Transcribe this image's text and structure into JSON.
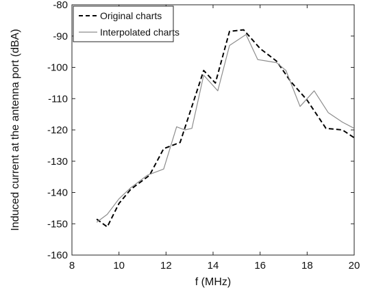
{
  "chart_data": {
    "type": "line",
    "title": "",
    "xlabel": "f (MHz)",
    "ylabel": "Induced current at the antenna port (dBA)",
    "xlim": [
      8,
      20
    ],
    "ylim": [
      -160,
      -80
    ],
    "xticks": [
      8,
      10,
      12,
      14,
      16,
      18,
      20
    ],
    "yticks": [
      -160,
      -150,
      -140,
      -130,
      -120,
      -110,
      -100,
      -90,
      -80
    ],
    "grid": false,
    "legend": "top-left",
    "series": [
      {
        "name": "Original charts",
        "color": "#000000",
        "style": "dashed",
        "x": [
          9.05,
          9.5,
          10.0,
          10.5,
          11.3,
          11.9,
          12.6,
          13.1,
          13.6,
          14.1,
          14.7,
          15.3,
          16.0,
          16.7,
          17.3,
          18.0,
          18.8,
          19.5,
          20.0
        ],
        "y": [
          -148.5,
          -151,
          -143.5,
          -139,
          -134.5,
          -126,
          -124,
          -112.5,
          -101,
          -105,
          -88.5,
          -88,
          -94,
          -98,
          -104.5,
          -110.5,
          -119.5,
          -120,
          -122.5
        ]
      },
      {
        "name": "Interpolated charts",
        "color": "#8c8c8c",
        "style": "solid",
        "x": [
          9.05,
          9.5,
          10.0,
          10.5,
          11.2,
          11.9,
          12.45,
          12.8,
          13.1,
          13.6,
          14.2,
          14.7,
          15.4,
          15.9,
          16.7,
          17.1,
          17.7,
          18.3,
          18.9,
          19.5,
          20.0
        ],
        "y": [
          -149.5,
          -147,
          -142,
          -138.5,
          -134.5,
          -132.5,
          -119,
          -120,
          -119.5,
          -102.5,
          -107.5,
          -93,
          -89.5,
          -97.5,
          -98.5,
          -101,
          -112.5,
          -107.5,
          -114.5,
          -117.5,
          -119.5
        ]
      }
    ]
  }
}
